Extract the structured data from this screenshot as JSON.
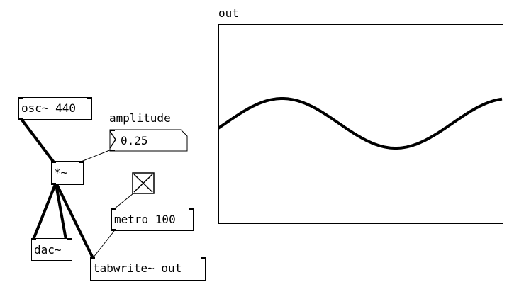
{
  "patch": {
    "osc": {
      "text": "osc~ 440"
    },
    "mul": {
      "text": "*~"
    },
    "dac": {
      "text": "dac~"
    },
    "metro": {
      "text": "metro 100"
    },
    "tabwrite": {
      "text": "tabwrite~ out"
    },
    "amplitude": {
      "label": "amplitude",
      "value": "0.25"
    },
    "array": {
      "name": "out"
    }
  },
  "colors": {
    "background": "#ffffff",
    "ink": "#000000"
  }
}
